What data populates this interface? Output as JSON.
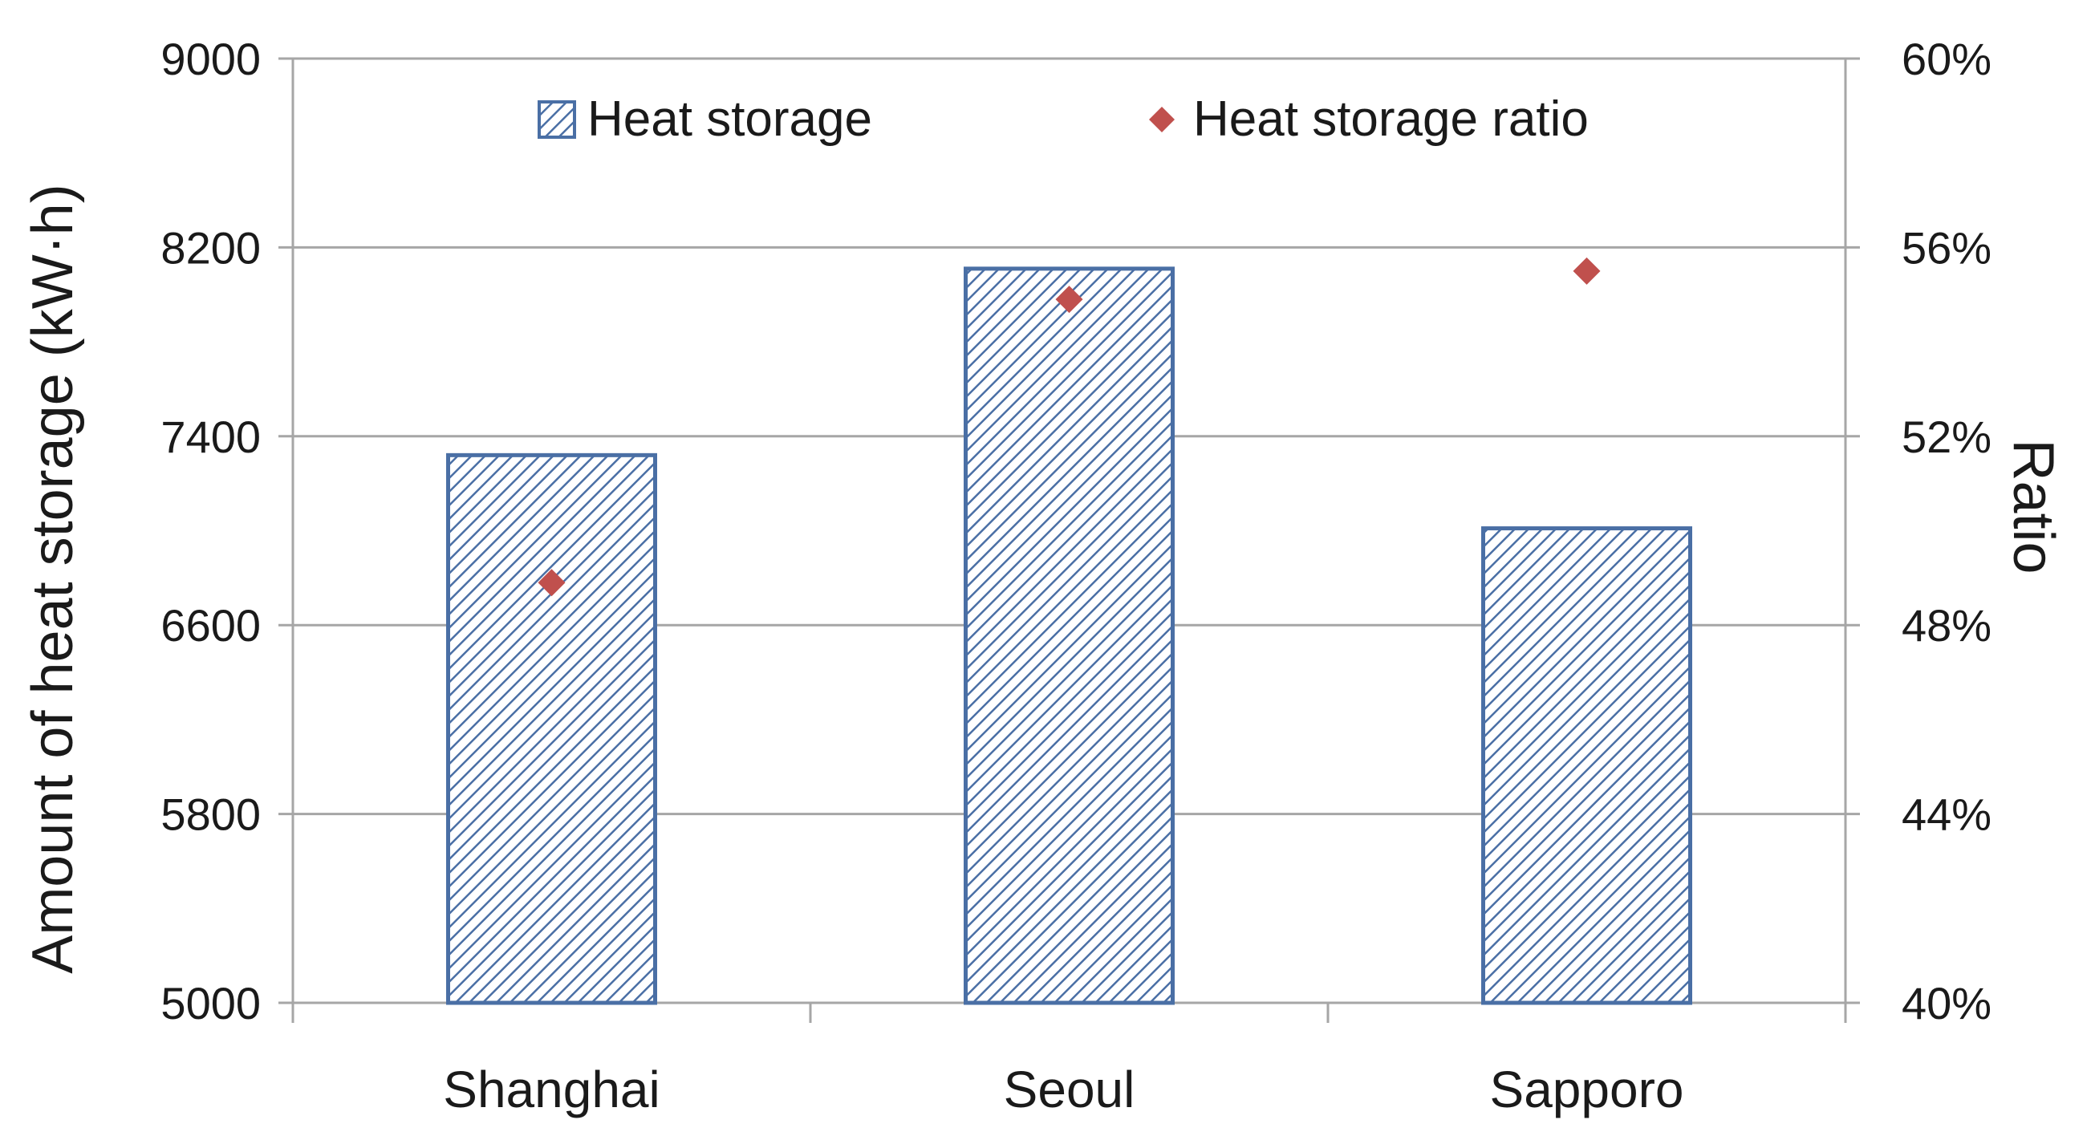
{
  "chart_data": {
    "type": "bar",
    "categories": [
      "Shanghai",
      "Seoul",
      "Sapporo"
    ],
    "series": [
      {
        "name": "Heat storage",
        "type": "bar",
        "axis": "left",
        "values": [
          7320,
          8110,
          7010
        ],
        "color": "#4a6fa5"
      },
      {
        "name": "Heat storage ratio",
        "type": "scatter",
        "axis": "right",
        "values": [
          0.489,
          0.549,
          0.555
        ],
        "color": "#c0504d"
      }
    ],
    "y_left": {
      "label": "Amount of heat storage (kW·h)",
      "ylim": [
        5000,
        9000
      ],
      "ticks": [
        5000,
        5800,
        6600,
        7400,
        8200,
        9000
      ],
      "tick_labels": [
        "5000",
        "5800",
        "6600",
        "7400",
        "8200",
        "9000"
      ]
    },
    "y_right": {
      "label": "Ratio",
      "ylim": [
        0.4,
        0.6
      ],
      "ticks": [
        0.4,
        0.44,
        0.48,
        0.52,
        0.56,
        0.6
      ],
      "tick_labels": [
        "40%",
        "44%",
        "48%",
        "52%",
        "56%",
        "60%"
      ]
    },
    "title": "",
    "xlabel": "",
    "grid": true,
    "legend_position": "top"
  }
}
